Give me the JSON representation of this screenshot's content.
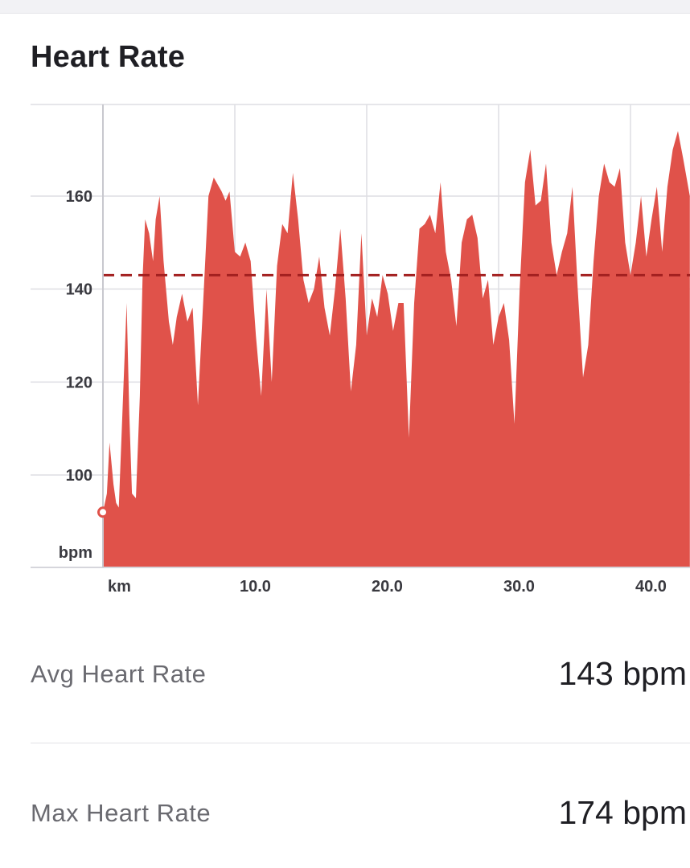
{
  "header": {
    "title": "Heart Rate"
  },
  "stats": {
    "avg": {
      "label": "Avg Heart Rate",
      "value": "143 bpm"
    },
    "max": {
      "label": "Max Heart Rate",
      "value": "174 bpm"
    }
  },
  "chart_data": {
    "type": "area",
    "ylabel": "bpm",
    "xlabel": "km",
    "yticks": [
      100,
      120,
      140,
      160
    ],
    "xticks": [
      10,
      20,
      30,
      40
    ],
    "xtick_labels": [
      "10.0",
      "20.0",
      "30.0",
      "40.0"
    ],
    "xlim": [
      0,
      44.5
    ],
    "ylim": [
      80,
      180
    ],
    "average_line": 143,
    "series": [
      {
        "values_role": "heart_rate",
        "color": "#e0524a",
        "x": [
          0,
          0.3,
          0.5,
          0.8,
          1.0,
          1.2,
          1.5,
          1.8,
          2.0,
          2.2,
          2.5,
          2.8,
          3.0,
          3.2,
          3.5,
          3.8,
          4.0,
          4.3,
          4.6,
          5.0,
          5.3,
          5.6,
          6.0,
          6.4,
          6.8,
          7.2,
          7.6,
          8.0,
          8.4,
          8.8,
          9.0,
          9.3,
          9.6,
          10.0,
          10.4,
          10.8,
          11.2,
          11.6,
          12.0,
          12.4,
          12.8,
          13.2,
          13.6,
          14.0,
          14.4,
          14.8,
          15.2,
          15.6,
          16.0,
          16.4,
          16.8,
          17.2,
          17.6,
          18.0,
          18.4,
          18.8,
          19.2,
          19.6,
          20.0,
          20.4,
          20.8,
          21.2,
          21.6,
          22.0,
          22.4,
          22.8,
          23.2,
          23.6,
          24.0,
          24.4,
          24.8,
          25.2,
          25.6,
          26.0,
          26.4,
          26.8,
          27.2,
          27.6,
          28.0,
          28.4,
          28.8,
          29.2,
          29.6,
          30.0,
          30.4,
          30.8,
          31.2,
          31.6,
          32.0,
          32.4,
          32.8,
          33.2,
          33.6,
          34.0,
          34.4,
          34.8,
          35.2,
          35.6,
          36.0,
          36.4,
          36.8,
          37.2,
          37.6,
          38.0,
          38.4,
          38.8,
          39.2,
          39.6,
          40.0,
          40.4,
          40.8,
          41.2,
          41.6,
          42.0,
          42.4,
          42.8,
          43.2,
          43.6,
          44.0,
          44.5
        ],
        "values": [
          92,
          96,
          107,
          98,
          94,
          93,
          115,
          137,
          113,
          96,
          95,
          117,
          142,
          155,
          152,
          146,
          155,
          160,
          146,
          133,
          128,
          134,
          139,
          133,
          136,
          115,
          137,
          160,
          164,
          162,
          161,
          159,
          161,
          148,
          147,
          150,
          146,
          130,
          117,
          140,
          120,
          145,
          154,
          152,
          165,
          155,
          142,
          137,
          140,
          147,
          136,
          130,
          140,
          153,
          138,
          118,
          128,
          152,
          130,
          138,
          134,
          143,
          139,
          131,
          137,
          137,
          108,
          137,
          153,
          154,
          156,
          152,
          163,
          148,
          142,
          132,
          150,
          155,
          156,
          151,
          138,
          142,
          128,
          134,
          137,
          129,
          111,
          140,
          163,
          170,
          158,
          159,
          167,
          150,
          143,
          148,
          152,
          162,
          140,
          121,
          128,
          146,
          160,
          167,
          163,
          162,
          166,
          150,
          143,
          150,
          160,
          147,
          155,
          162,
          148,
          162,
          170,
          174,
          168,
          160
        ]
      }
    ]
  }
}
